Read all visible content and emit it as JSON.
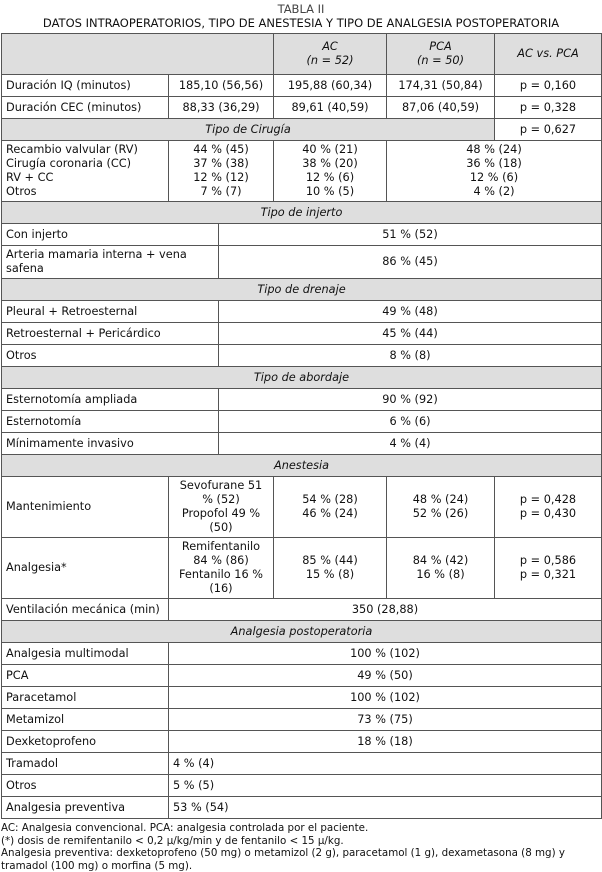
{
  "caption": {
    "number": "TABLA II",
    "title": "DATOS INTRAOPERATORIOS, TIPO DE ANESTESIA Y TIPO DE ANALGESIA POSTOPERATORIA"
  },
  "header": {
    "ac": "AC",
    "ac_n": "(n = 52)",
    "pca": "PCA",
    "pca_n": "(n = 50)",
    "p": "AC vs. PCA"
  },
  "durations": [
    {
      "label": "Duración IQ (minutos)",
      "total": "185,10 (56,56)",
      "ac": "195,88 (60,34)",
      "pca": "174,31 (50,84)",
      "p": "p = 0,160"
    },
    {
      "label": "Duración CEC (minutos)",
      "total": "88,33 (36,29)",
      "ac": "89,61 (40,59)",
      "pca": "87,06 (40,59)",
      "p": "p = 0,328"
    }
  ],
  "cirugia": {
    "title": "Tipo de Cirugía",
    "p": "p = 0,627",
    "labels": [
      "Recambio valvular (RV)",
      "Cirugía coronaria (CC)",
      "RV + CC",
      "Otros"
    ],
    "total": [
      "44 % (45)",
      "37 % (38)",
      "12 % (12)",
      "7 % (7)"
    ],
    "ac": [
      "40 % (21)",
      "38 % (20)",
      "12 % (6)",
      "10 % (5)"
    ],
    "pca": [
      "48 % (24)",
      "36 % (18)",
      "12 % (6)",
      "4 % (2)"
    ]
  },
  "injerto": {
    "title": "Tipo de injerto",
    "rows": [
      {
        "label": "Con injerto",
        "value": "51 % (52)"
      },
      {
        "label": "Arteria mamaria interna + vena safena",
        "value": "86 % (45)"
      }
    ]
  },
  "drenaje": {
    "title": "Tipo de drenaje",
    "rows": [
      {
        "label": "Pleural + Retroesternal",
        "value": "49 % (48)"
      },
      {
        "label": "Retroesternal + Pericárdico",
        "value": "45 % (44)"
      },
      {
        "label": "Otros",
        "value": "8 % (8)"
      }
    ]
  },
  "abordaje": {
    "title": "Tipo de abordaje",
    "rows": [
      {
        "label": "Esternotomía ampliada",
        "value": "90 % (92)"
      },
      {
        "label": "Esternotomía",
        "value": "6 % (6)"
      },
      {
        "label": "Mínimamente invasivo",
        "value": "4 % (4)"
      }
    ]
  },
  "anestesia": {
    "title": "Anestesia",
    "rows": [
      {
        "label": "Mantenimiento",
        "total": [
          "Sevofurane 51 % (52)",
          "Propofol 49 % (50)"
        ],
        "ac": [
          "54 % (28)",
          "46 % (24)"
        ],
        "pca": [
          "48 % (24)",
          "52 % (26)"
        ],
        "p": [
          "p = 0,428",
          "p = 0,430"
        ]
      },
      {
        "label": "Analgesia*",
        "total": [
          "Remifentanilo 84 % (86)",
          "Fentanilo 16 % (16)"
        ],
        "ac": [
          "85 % (44)",
          "15 % (8)"
        ],
        "pca": [
          "84 % (42)",
          "16 % (8)"
        ],
        "p": [
          "p = 0,586",
          "p = 0,321"
        ]
      }
    ],
    "ventilacion": {
      "label": "Ventilación mecánica (min)",
      "value": "350 (28,88)"
    }
  },
  "postop": {
    "title": "Analgesia postoperatoria",
    "centered": [
      {
        "label": "Analgesia multimodal",
        "value": "100 % (102)"
      },
      {
        "label": "PCA",
        "value": "49 % (50)"
      },
      {
        "label": "Paracetamol",
        "value": "100 % (102)"
      },
      {
        "label": "Metamizol",
        "value": "73 % (75)"
      },
      {
        "label": "Dexketoprofeno",
        "value": "18 % (18)"
      }
    ],
    "left": [
      {
        "label": "Tramadol",
        "value": "4 % (4)"
      },
      {
        "label": "Otros",
        "value": "5 % (5)"
      },
      {
        "label": "Analgesia preventiva",
        "value": "53 % (54)"
      }
    ]
  },
  "notes": [
    "AC: Analgesia convencional. PCA: analgesia controlada por el paciente.",
    "(*) dosis de remifentanilo < 0,2 μ/kg/min y de fentanilo < 15 μ/kg.",
    "Analgesia preventiva: dexketoprofeno (50 mg) o metamizol (2 g), paracetamol (1 g), dexametasona (8 mg) y tramadol (100 mg) o morfina (5 mg)."
  ]
}
